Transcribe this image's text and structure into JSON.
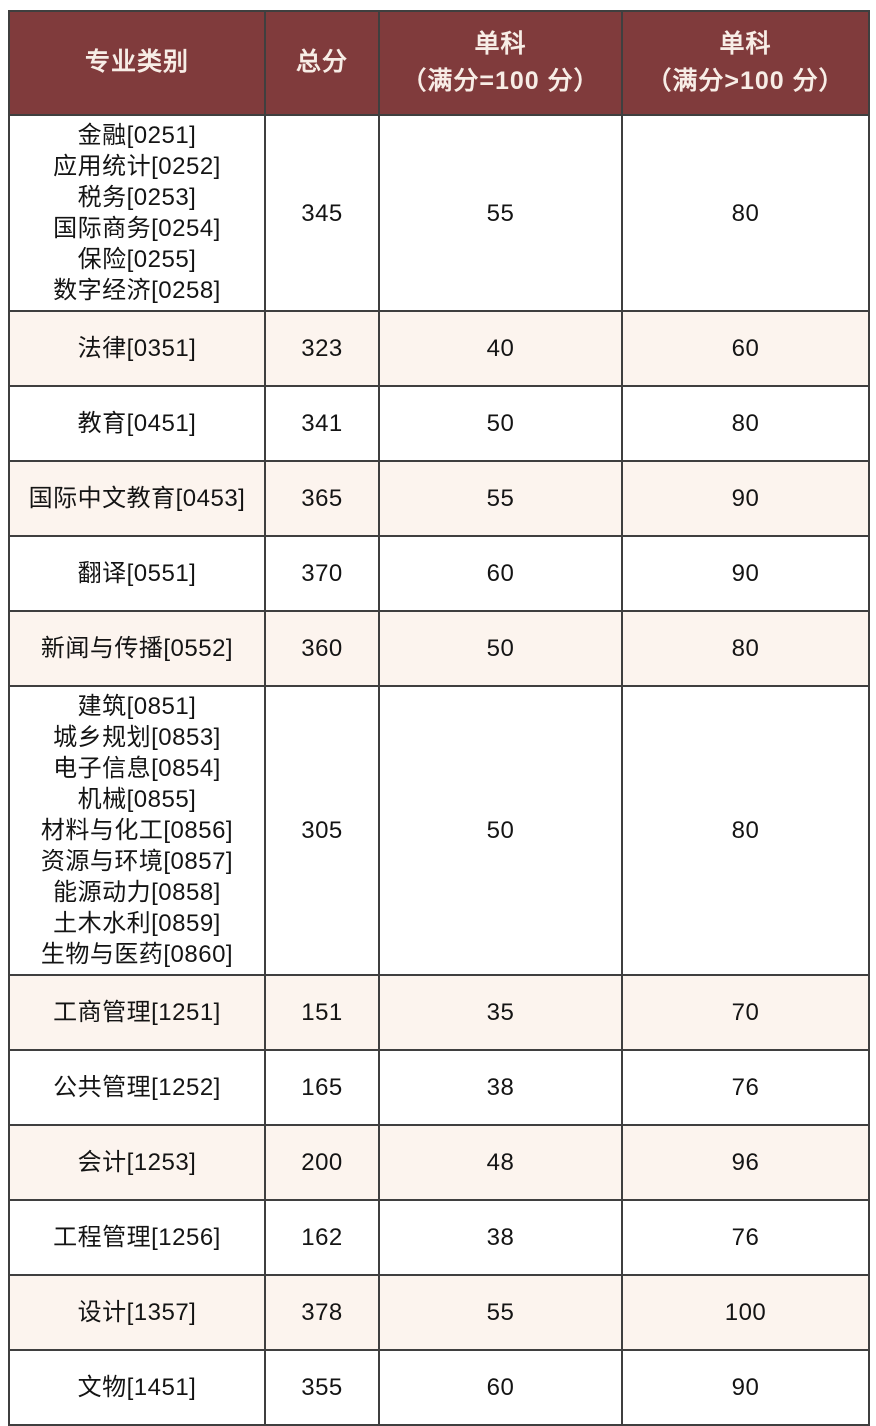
{
  "theme": {
    "header_bg": "#803b3c",
    "header_text": "#f7ede6",
    "row_alt_bg": "#fcf4ee",
    "row_bg": "#ffffff",
    "border_color": "#3f3f3f",
    "cell_text": "#141414"
  },
  "table": {
    "columns": [
      {
        "label": "专业类别",
        "sub": ""
      },
      {
        "label": "总分",
        "sub": ""
      },
      {
        "label": "单科",
        "sub": "（满分=100 分）"
      },
      {
        "label": "单科",
        "sub": "（满分>100 分）"
      }
    ],
    "rows": [
      {
        "categories": [
          "金融[0251]",
          "应用统计[0252]",
          "税务[0253]",
          "国际商务[0254]",
          "保险[0255]",
          "数字经济[0258]"
        ],
        "total": "345",
        "single_eq100": "55",
        "single_gt100": "80"
      },
      {
        "categories": [
          "法律[0351]"
        ],
        "total": "323",
        "single_eq100": "40",
        "single_gt100": "60"
      },
      {
        "categories": [
          "教育[0451]"
        ],
        "total": "341",
        "single_eq100": "50",
        "single_gt100": "80"
      },
      {
        "categories": [
          "国际中文教育[0453]"
        ],
        "total": "365",
        "single_eq100": "55",
        "single_gt100": "90"
      },
      {
        "categories": [
          "翻译[0551]"
        ],
        "total": "370",
        "single_eq100": "60",
        "single_gt100": "90"
      },
      {
        "categories": [
          "新闻与传播[0552]"
        ],
        "total": "360",
        "single_eq100": "50",
        "single_gt100": "80"
      },
      {
        "categories": [
          "建筑[0851]",
          "城乡规划[0853]",
          "电子信息[0854]",
          "机械[0855]",
          "材料与化工[0856]",
          "资源与环境[0857]",
          "能源动力[0858]",
          "土木水利[0859]",
          "生物与医药[0860]"
        ],
        "total": "305",
        "single_eq100": "50",
        "single_gt100": "80"
      },
      {
        "categories": [
          "工商管理[1251]"
        ],
        "total": "151",
        "single_eq100": "35",
        "single_gt100": "70"
      },
      {
        "categories": [
          "公共管理[1252]"
        ],
        "total": "165",
        "single_eq100": "38",
        "single_gt100": "76"
      },
      {
        "categories": [
          "会计[1253]"
        ],
        "total": "200",
        "single_eq100": "48",
        "single_gt100": "96"
      },
      {
        "categories": [
          "工程管理[1256]"
        ],
        "total": "162",
        "single_eq100": "38",
        "single_gt100": "76"
      },
      {
        "categories": [
          "设计[1357]"
        ],
        "total": "378",
        "single_eq100": "55",
        "single_gt100": "100"
      },
      {
        "categories": [
          "文物[1451]"
        ],
        "total": "355",
        "single_eq100": "60",
        "single_gt100": "90"
      }
    ]
  }
}
